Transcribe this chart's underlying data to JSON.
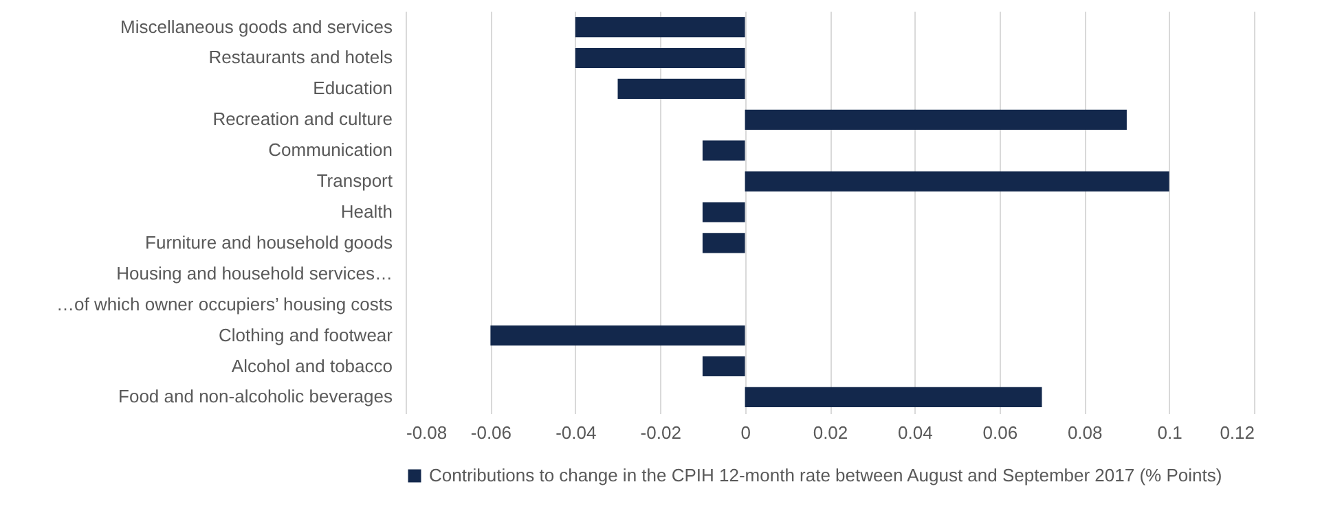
{
  "chart_data": {
    "type": "bar",
    "orientation": "horizontal",
    "categories": [
      "Miscellaneous goods and services",
      "Restaurants and hotels",
      "Education",
      "Recreation and culture",
      "Communication",
      "Transport",
      "Health",
      "Furniture and household goods",
      "Housing and household services…",
      "…of which owner occupiers’ housing costs",
      "Clothing and footwear",
      "Alcohol and tobacco",
      "Food and non-alcoholic beverages"
    ],
    "series": [
      {
        "name": "Contributions to change in the CPIH 12-month rate between August and September 2017 (% Points)",
        "color": "#13284c",
        "values": [
          -0.04,
          -0.04,
          -0.03,
          0.09,
          -0.01,
          0.1,
          -0.01,
          -0.01,
          0,
          0,
          -0.06,
          -0.01,
          0.07
        ]
      }
    ],
    "xlim": [
      -0.08,
      0.12
    ],
    "xticks": [
      -0.08,
      -0.06,
      -0.04,
      -0.02,
      0,
      0.02,
      0.04,
      0.06,
      0.08,
      0.1,
      0.12
    ],
    "grid": "x",
    "legend": "bottom"
  }
}
